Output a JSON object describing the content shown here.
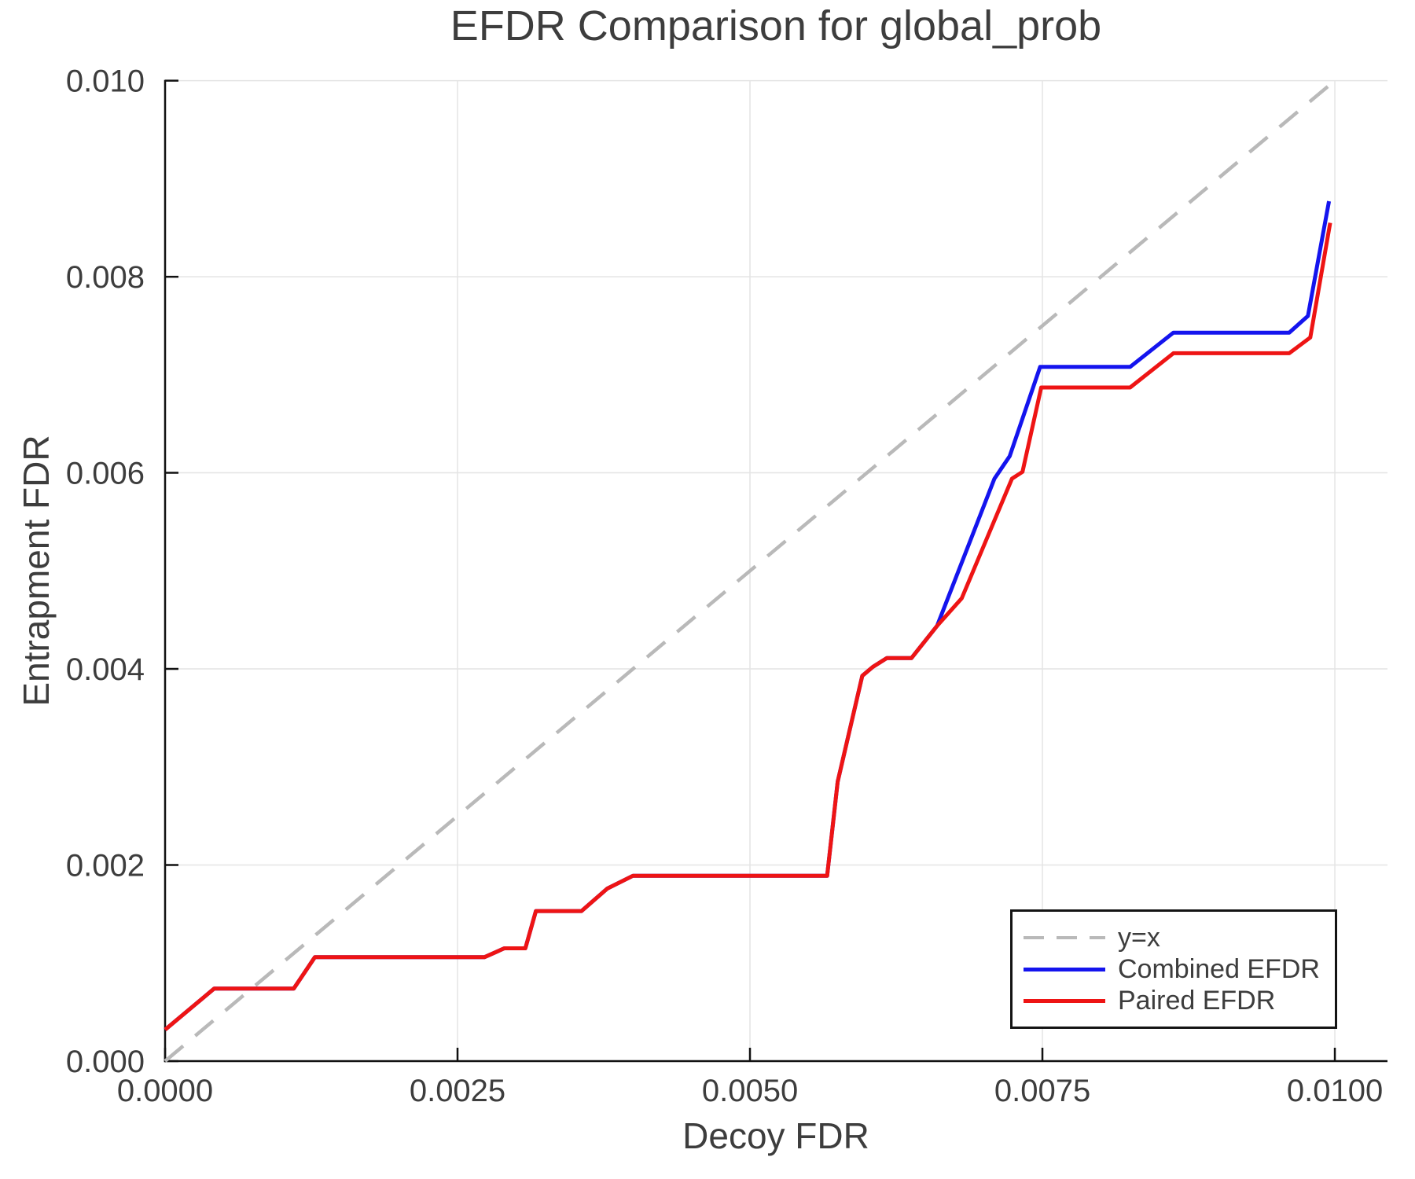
{
  "title": "EFDR Comparison for global_prob",
  "axes": {
    "xlabel": "Decoy FDR",
    "ylabel": "Entrapment FDR"
  },
  "chart_data": {
    "type": "line",
    "title": "EFDR Comparison for global_prob",
    "xlabel": "Decoy FDR",
    "ylabel": "Entrapment FDR",
    "xlim": [
      0.0,
      0.01045
    ],
    "ylim": [
      0.0,
      0.01
    ],
    "grid": true,
    "legend_position": "lower right",
    "xticks": [
      0.0,
      0.0025,
      0.005,
      0.0075,
      0.01
    ],
    "xtick_labels": [
      "0.0000",
      "0.0025",
      "0.0050",
      "0.0075",
      "0.0100"
    ],
    "yticks": [
      0.0,
      0.002,
      0.004,
      0.006,
      0.008,
      0.01
    ],
    "ytick_labels": [
      "0.000",
      "0.002",
      "0.004",
      "0.006",
      "0.008",
      "0.010"
    ],
    "colors": {
      "grid": "#e4e4e4",
      "spine": "#111111",
      "text": "#3d3d3d",
      "diagonal": "#b9b9b9",
      "combined": "#1414ee",
      "paired": "#ee1414"
    },
    "series": [
      {
        "name": "y=x",
        "color": "#b9b9b9",
        "style": "dashed",
        "width": 4.5,
        "points": [
          [
            0.0,
            0.0
          ],
          [
            0.01,
            0.01
          ]
        ]
      },
      {
        "name": "Combined EFDR",
        "color": "#1414ee",
        "style": "solid",
        "width": 5,
        "points": [
          [
            0.0,
            0.00032
          ],
          [
            0.00042,
            0.00074
          ],
          [
            0.0011,
            0.00074
          ],
          [
            0.00128,
            0.00106
          ],
          [
            0.00273,
            0.00106
          ],
          [
            0.0029,
            0.00115
          ],
          [
            0.00308,
            0.00115
          ],
          [
            0.00317,
            0.00153
          ],
          [
            0.00356,
            0.00153
          ],
          [
            0.00378,
            0.00176
          ],
          [
            0.004,
            0.00189
          ],
          [
            0.00566,
            0.00189
          ],
          [
            0.00575,
            0.00285
          ],
          [
            0.00596,
            0.00393
          ],
          [
            0.00605,
            0.00402
          ],
          [
            0.00617,
            0.00411
          ],
          [
            0.00638,
            0.00411
          ],
          [
            0.0066,
            0.00444
          ],
          [
            0.00709,
            0.00594
          ],
          [
            0.00722,
            0.00617
          ],
          [
            0.00748,
            0.00708
          ],
          [
            0.00825,
            0.00708
          ],
          [
            0.00862,
            0.00743
          ],
          [
            0.00961,
            0.00743
          ],
          [
            0.00977,
            0.0076
          ],
          [
            0.00995,
            0.00877
          ]
        ]
      },
      {
        "name": "Paired EFDR",
        "color": "#ee1414",
        "style": "solid",
        "width": 5,
        "points": [
          [
            0.0,
            0.00032
          ],
          [
            0.00042,
            0.00074
          ],
          [
            0.0011,
            0.00074
          ],
          [
            0.00128,
            0.00106
          ],
          [
            0.00273,
            0.00106
          ],
          [
            0.0029,
            0.00115
          ],
          [
            0.00308,
            0.00115
          ],
          [
            0.00317,
            0.00153
          ],
          [
            0.00356,
            0.00153
          ],
          [
            0.00378,
            0.00176
          ],
          [
            0.004,
            0.00189
          ],
          [
            0.00566,
            0.00189
          ],
          [
            0.00575,
            0.00285
          ],
          [
            0.00596,
            0.00393
          ],
          [
            0.00605,
            0.00402
          ],
          [
            0.00617,
            0.00411
          ],
          [
            0.00638,
            0.00411
          ],
          [
            0.0066,
            0.00444
          ],
          [
            0.00681,
            0.00472
          ],
          [
            0.00724,
            0.00594
          ],
          [
            0.00733,
            0.00601
          ],
          [
            0.00749,
            0.00687
          ],
          [
            0.00825,
            0.00687
          ],
          [
            0.00862,
            0.00722
          ],
          [
            0.00961,
            0.00722
          ],
          [
            0.00979,
            0.00738
          ],
          [
            0.00996,
            0.00855
          ]
        ]
      }
    ]
  }
}
